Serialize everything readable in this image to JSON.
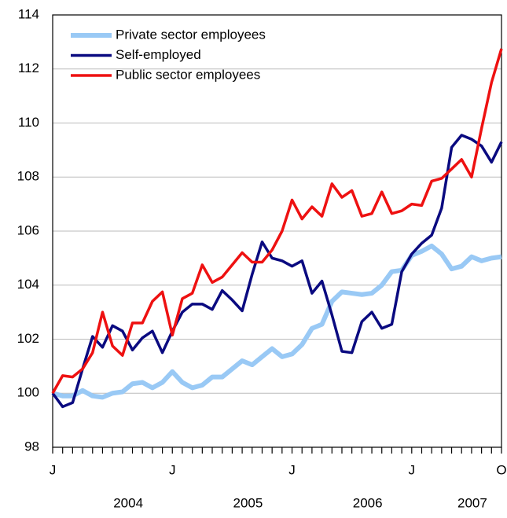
{
  "chart_data": {
    "type": "line",
    "categories": [
      "J",
      null,
      null,
      null,
      null,
      null,
      null,
      null,
      null,
      null,
      null,
      null,
      "J",
      null,
      null,
      null,
      null,
      null,
      null,
      null,
      null,
      null,
      null,
      null,
      "J",
      null,
      null,
      null,
      null,
      null,
      null,
      null,
      null,
      null,
      null,
      null,
      "J",
      null,
      null,
      null,
      null,
      null,
      null,
      null,
      null,
      "O"
    ],
    "x_groups": [
      "2004",
      "2005",
      "2006",
      "2007"
    ],
    "series": [
      {
        "name": "Private sector employees",
        "color": "#99c9f5",
        "width": 6,
        "values": [
          100,
          99.9,
          99.9,
          100.1,
          99.9,
          99.85,
          100.0,
          100.05,
          100.35,
          100.4,
          100.2,
          100.4,
          100.8,
          100.4,
          100.2,
          100.3,
          100.6,
          100.6,
          100.9,
          101.2,
          101.05,
          101.35,
          101.65,
          101.35,
          101.45,
          101.8,
          102.4,
          102.55,
          103.4,
          103.75,
          103.7,
          103.65,
          103.7,
          104.0,
          104.5,
          104.55,
          105.1,
          105.25,
          105.45,
          105.15,
          104.6,
          104.7,
          105.05,
          104.9,
          105.0,
          105.05
        ]
      },
      {
        "name": "Self-employed",
        "color": "#0a0a80",
        "width": 3.5,
        "values": [
          100,
          99.5,
          99.65,
          100.9,
          102.1,
          101.7,
          102.5,
          102.3,
          101.6,
          102.05,
          102.3,
          101.5,
          102.3,
          103.0,
          103.3,
          103.3,
          103.1,
          103.8,
          103.45,
          103.05,
          104.4,
          105.6,
          105.0,
          104.9,
          104.7,
          104.9,
          103.7,
          104.15,
          102.9,
          101.55,
          101.5,
          102.65,
          103.0,
          102.4,
          102.55,
          104.5,
          105.15,
          105.55,
          105.85,
          106.85,
          109.1,
          109.55,
          109.4,
          109.15,
          108.55,
          109.3
        ]
      },
      {
        "name": "Public sector employees",
        "color": "#ee1111",
        "width": 3.5,
        "values": [
          100,
          100.65,
          100.6,
          100.9,
          101.5,
          103.0,
          101.75,
          101.4,
          102.6,
          102.6,
          103.4,
          103.75,
          102.15,
          103.5,
          103.7,
          104.75,
          104.1,
          104.3,
          104.75,
          105.2,
          104.85,
          104.85,
          105.3,
          106.0,
          107.15,
          106.45,
          106.9,
          106.55,
          107.75,
          107.25,
          107.5,
          106.55,
          106.65,
          107.45,
          106.65,
          106.75,
          107.0,
          106.95,
          107.85,
          107.95,
          108.3,
          108.65,
          108.0,
          109.8,
          111.5,
          112.75
        ]
      }
    ],
    "ylim": [
      98,
      114
    ],
    "yticks": [
      98,
      100,
      102,
      104,
      106,
      108,
      110,
      112,
      114
    ],
    "grid": true,
    "legend": "top-left"
  }
}
